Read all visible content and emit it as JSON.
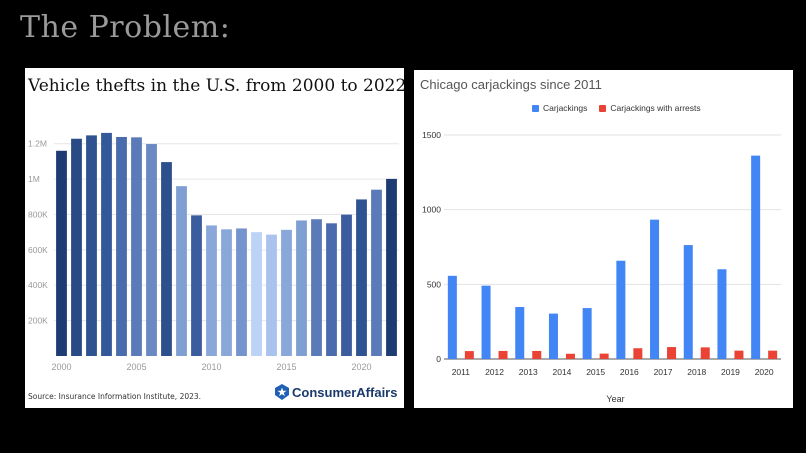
{
  "slide": {
    "title": "The Problem:"
  },
  "left_panel": {
    "source": "Source: Insurance Information Institute, 2023.",
    "brand_consumer": "Consumer",
    "brand_affairs": "Affairs"
  },
  "right_panel": {},
  "chart_data": [
    {
      "type": "bar",
      "title": "Vehicle thefts in the U.S. from 2000 to 2022",
      "xlabel": "",
      "ylabel": "",
      "categories": [
        "2000",
        "2001",
        "2002",
        "2003",
        "2004",
        "2005",
        "2006",
        "2007",
        "2008",
        "2009",
        "2010",
        "2011",
        "2012",
        "2013",
        "2014",
        "2015",
        "2016",
        "2017",
        "2018",
        "2019",
        "2020",
        "2021",
        "2022"
      ],
      "values": [
        1160000,
        1228000,
        1247000,
        1261000,
        1238000,
        1236000,
        1198000,
        1096000,
        960000,
        795000,
        738000,
        716000,
        721000,
        700000,
        686000,
        713000,
        766000,
        773000,
        750000,
        799000,
        885000,
        940000,
        1001000
      ],
      "bar_colors": [
        "#1f3b73",
        "#2a4a85",
        "#2f5390",
        "#34599a",
        "#4a6cac",
        "#5b7bb8",
        "#6b89c2",
        "#2d4f8c",
        "#7f9fd3",
        "#3b5d9e",
        "#8aa7da",
        "#8aa7da",
        "#7593cc",
        "#bcd3f5",
        "#a9c3ee",
        "#8aa7da",
        "#7f9fd3",
        "#5b7bb8",
        "#4a6cac",
        "#3b5d9e",
        "#2f5390",
        "#5b7bb8",
        "#1f3b73"
      ],
      "yticks": [
        "200K",
        "400K",
        "600K",
        "800K",
        "1M",
        "1.2M"
      ],
      "ytick_values": [
        200000,
        400000,
        600000,
        800000,
        1000000,
        1200000
      ],
      "xticks": [
        "2000",
        "2005",
        "2010",
        "2015",
        "2020"
      ],
      "ylim": [
        0,
        1300000
      ],
      "grid": true,
      "legend": "none"
    },
    {
      "type": "bar",
      "title": "Chicago carjackings since 2011",
      "xlabel": "Year",
      "ylabel": "",
      "categories": [
        "2011",
        "2012",
        "2013",
        "2014",
        "2015",
        "2016",
        "2017",
        "2018",
        "2019",
        "2020"
      ],
      "series": [
        {
          "name": "Carjackings",
          "color": "#4285f4",
          "values": [
            557,
            491,
            348,
            304,
            341,
            658,
            933,
            763,
            601,
            1362
          ]
        },
        {
          "name": "Carjackings with arrests",
          "color": "#ea4335",
          "values": [
            53,
            54,
            54,
            35,
            36,
            72,
            80,
            78,
            56,
            56
          ]
        }
      ],
      "yticks": [
        "0",
        "500",
        "1000",
        "1500"
      ],
      "ytick_values": [
        0,
        500,
        1000,
        1500
      ],
      "ylim": [
        0,
        1500
      ],
      "grid": true,
      "legend": "top"
    }
  ]
}
